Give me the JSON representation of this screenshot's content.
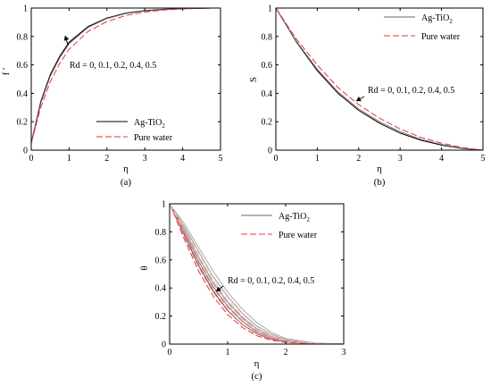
{
  "chart_data": [
    {
      "type": "line",
      "panel_label": "(a)",
      "xlabel": "η",
      "ylabel": "f ′",
      "xlim": [
        0,
        5
      ],
      "ylim": [
        0,
        1
      ],
      "xticks": [
        "0",
        "1",
        "2",
        "3",
        "4",
        "5"
      ],
      "yticks": [
        "0",
        "0.2",
        "0.4",
        "0.6",
        "0.8",
        "1"
      ],
      "legend_position": "bottom-right",
      "annotation": "Rd = 0, 0.1, 0.2, 0.4, 0.5",
      "legend": [
        {
          "label_main": "Ag-TiO",
          "label_sub": "2",
          "color": "#000000",
          "dash": "solid"
        },
        {
          "label_main": "Pure water",
          "label_sub": "",
          "color": "#e8343a",
          "dash": "dashed"
        }
      ],
      "series": [
        {
          "name": "Ag-TiO2",
          "color": "#000000",
          "dash": "solid",
          "x": [
            0,
            0.25,
            0.5,
            0.75,
            1.0,
            1.5,
            2.0,
            2.5,
            3.0,
            3.5,
            4.0,
            4.5,
            4.75
          ],
          "y": [
            0.05,
            0.34,
            0.53,
            0.66,
            0.76,
            0.87,
            0.93,
            0.965,
            0.982,
            0.991,
            0.996,
            0.999,
            1.0
          ]
        },
        {
          "name": "Ag-TiO2",
          "color": "#555555",
          "dash": "solid",
          "x": [
            0,
            0.25,
            0.5,
            0.75,
            1.0,
            1.5,
            2.0,
            2.5,
            3.0,
            3.5,
            4.0,
            4.5,
            4.75
          ],
          "y": [
            0.05,
            0.33,
            0.52,
            0.65,
            0.75,
            0.865,
            0.927,
            0.962,
            0.98,
            0.99,
            0.996,
            0.999,
            1.0
          ]
        },
        {
          "name": "Pure water",
          "color": "#e8343a",
          "dash": "dashed",
          "x": [
            0,
            0.25,
            0.5,
            0.75,
            1.0,
            1.5,
            2.0,
            2.5,
            3.0,
            3.5,
            4.0,
            4.5,
            4.75
          ],
          "y": [
            0.05,
            0.3,
            0.48,
            0.61,
            0.71,
            0.835,
            0.905,
            0.948,
            0.972,
            0.986,
            0.994,
            0.998,
            1.0
          ]
        }
      ]
    },
    {
      "type": "line",
      "panel_label": "(b)",
      "xlabel": "η",
      "ylabel": "S",
      "xlim": [
        0,
        5
      ],
      "ylim": [
        0,
        1
      ],
      "xticks": [
        "0",
        "1",
        "2",
        "3",
        "4",
        "5"
      ],
      "yticks": [
        "0",
        "0.2",
        "0.4",
        "0.6",
        "0.8",
        "1"
      ],
      "legend_position": "top-right",
      "annotation": "Rd = 0, 0.1, 0.2, 0.4, 0.5",
      "legend": [
        {
          "label_main": "Ag-TiO",
          "label_sub": "2",
          "color": "#666666",
          "dash": "solid"
        },
        {
          "label_main": "Pure water",
          "label_sub": "",
          "color": "#e8343a",
          "dash": "dashed"
        }
      ],
      "series": [
        {
          "name": "Ag-TiO2",
          "color": "#000000",
          "dash": "solid",
          "x": [
            0,
            0.5,
            1.0,
            1.5,
            2.0,
            2.5,
            3.0,
            3.5,
            4.0,
            4.5,
            5.0
          ],
          "y": [
            1.0,
            0.76,
            0.56,
            0.4,
            0.28,
            0.19,
            0.12,
            0.07,
            0.035,
            0.012,
            0.0
          ]
        },
        {
          "name": "Ag-TiO2",
          "color": "#777777",
          "dash": "solid",
          "x": [
            0,
            0.5,
            1.0,
            1.5,
            2.0,
            2.5,
            3.0,
            3.5,
            4.0,
            4.5,
            5.0
          ],
          "y": [
            1.0,
            0.765,
            0.57,
            0.41,
            0.29,
            0.2,
            0.13,
            0.077,
            0.04,
            0.014,
            0.0
          ]
        },
        {
          "name": "Pure water",
          "color": "#e8343a",
          "dash": "dashed",
          "x": [
            0,
            0.5,
            1.0,
            1.5,
            2.0,
            2.5,
            3.0,
            3.5,
            4.0,
            4.5,
            5.0
          ],
          "y": [
            1.0,
            0.78,
            0.6,
            0.44,
            0.32,
            0.225,
            0.15,
            0.09,
            0.05,
            0.018,
            0.0
          ]
        }
      ]
    },
    {
      "type": "line",
      "panel_label": "(c)",
      "xlabel": "η",
      "ylabel": "θ",
      "xlim": [
        0,
        3
      ],
      "ylim": [
        0,
        1
      ],
      "xticks": [
        "0",
        "1",
        "2",
        "3"
      ],
      "yticks": [
        "0",
        "0.2",
        "0.4",
        "0.6",
        "0.8",
        "1"
      ],
      "legend_position": "top-right",
      "annotation": "Rd = 0, 0.1, 0.2, 0.4, 0.5",
      "legend": [
        {
          "label_main": "Ag-TiO",
          "label_sub": "2",
          "color": "#666666",
          "dash": "solid"
        },
        {
          "label_main": "Pure water",
          "label_sub": "",
          "color": "#e8343a",
          "dash": "dashed"
        }
      ],
      "series": [
        {
          "name": "Ag-TiO2",
          "color": "#555555",
          "dash": "solid",
          "x": [
            0,
            0.25,
            0.5,
            0.75,
            1.0,
            1.25,
            1.5,
            1.75,
            2.0,
            2.5,
            3.0
          ],
          "y": [
            1.0,
            0.78,
            0.56,
            0.38,
            0.24,
            0.14,
            0.075,
            0.035,
            0.015,
            0.003,
            0.0
          ]
        },
        {
          "name": "Ag-TiO2",
          "color": "#777777",
          "dash": "solid",
          "x": [
            0,
            0.25,
            0.5,
            0.75,
            1.0,
            1.25,
            1.5,
            1.75,
            2.0,
            2.5,
            3.0
          ],
          "y": [
            1.0,
            0.8,
            0.59,
            0.41,
            0.27,
            0.165,
            0.09,
            0.045,
            0.02,
            0.004,
            0.0
          ]
        },
        {
          "name": "Ag-TiO2",
          "color": "#888888",
          "dash": "solid",
          "x": [
            0,
            0.25,
            0.5,
            0.75,
            1.0,
            1.25,
            1.5,
            1.75,
            2.0,
            2.5,
            3.0
          ],
          "y": [
            1.0,
            0.82,
            0.62,
            0.44,
            0.3,
            0.19,
            0.11,
            0.055,
            0.025,
            0.005,
            0.0
          ]
        },
        {
          "name": "Ag-TiO2",
          "color": "#999999",
          "dash": "solid",
          "x": [
            0,
            0.25,
            0.5,
            0.75,
            1.0,
            1.25,
            1.5,
            1.75,
            2.0,
            2.5,
            3.0
          ],
          "y": [
            1.0,
            0.84,
            0.66,
            0.48,
            0.34,
            0.22,
            0.13,
            0.07,
            0.032,
            0.006,
            0.0
          ]
        },
        {
          "name": "Ag-TiO2",
          "color": "#aaaaaa",
          "dash": "solid",
          "x": [
            0,
            0.25,
            0.5,
            0.75,
            1.0,
            1.25,
            1.5,
            1.75,
            2.0,
            2.5,
            3.0
          ],
          "y": [
            1.0,
            0.86,
            0.69,
            0.52,
            0.37,
            0.25,
            0.155,
            0.085,
            0.04,
            0.008,
            0.0
          ]
        },
        {
          "name": "Pure water",
          "color": "#e8343a",
          "dash": "dashed",
          "x": [
            0,
            0.25,
            0.5,
            0.75,
            1.0,
            1.25,
            1.5,
            1.75,
            2.0,
            2.5,
            3.0
          ],
          "y": [
            1.0,
            0.75,
            0.52,
            0.34,
            0.21,
            0.12,
            0.06,
            0.028,
            0.012,
            0.002,
            0.0
          ]
        },
        {
          "name": "Pure water",
          "color": "#ee6a6e",
          "dash": "dashed",
          "x": [
            0,
            0.25,
            0.5,
            0.75,
            1.0,
            1.25,
            1.5,
            1.75,
            2.0,
            2.5,
            3.0
          ],
          "y": [
            1.0,
            0.77,
            0.55,
            0.37,
            0.235,
            0.14,
            0.072,
            0.034,
            0.015,
            0.003,
            0.0
          ]
        },
        {
          "name": "Pure water",
          "color": "#f2898c",
          "dash": "dashed",
          "x": [
            0,
            0.25,
            0.5,
            0.75,
            1.0,
            1.25,
            1.5,
            1.75,
            2.0,
            2.5,
            3.0
          ],
          "y": [
            1.0,
            0.79,
            0.58,
            0.4,
            0.26,
            0.16,
            0.085,
            0.042,
            0.018,
            0.004,
            0.0
          ]
        },
        {
          "name": "Pure water",
          "color": "#f5a5a7",
          "dash": "dashed",
          "x": [
            0,
            0.25,
            0.5,
            0.75,
            1.0,
            1.25,
            1.5,
            1.75,
            2.0,
            2.5,
            3.0
          ],
          "y": [
            1.0,
            0.81,
            0.61,
            0.43,
            0.29,
            0.18,
            0.1,
            0.05,
            0.022,
            0.005,
            0.0
          ]
        },
        {
          "name": "Pure water",
          "color": "#f7bdbf",
          "dash": "dashed",
          "x": [
            0,
            0.25,
            0.5,
            0.75,
            1.0,
            1.25,
            1.5,
            1.75,
            2.0,
            2.5,
            3.0
          ],
          "y": [
            1.0,
            0.83,
            0.64,
            0.46,
            0.32,
            0.2,
            0.115,
            0.06,
            0.027,
            0.006,
            0.0
          ]
        }
      ]
    }
  ]
}
